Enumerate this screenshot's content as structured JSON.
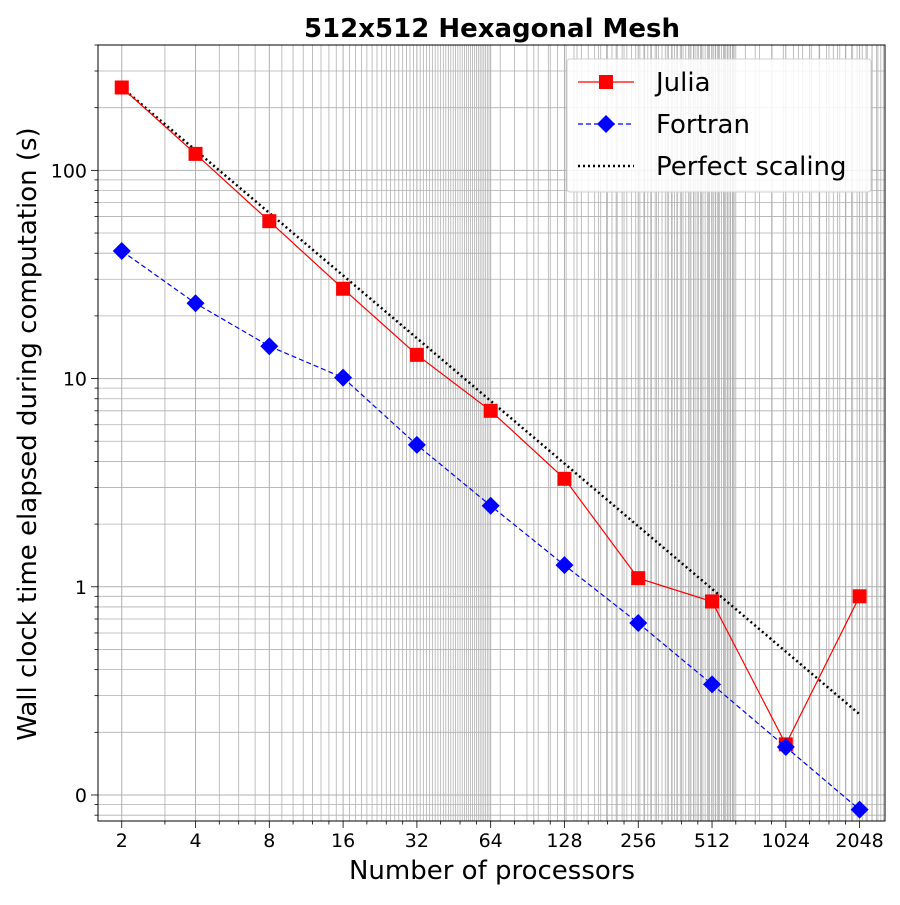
{
  "chart_data": {
    "type": "line",
    "title": "512x512 Hexagonal Mesh",
    "xlabel": "Number of processors",
    "ylabel": "Wall clock time elapsed during computation (s)",
    "x_scale": "log2",
    "y_scale": "log10",
    "x": [
      2,
      4,
      8,
      16,
      32,
      64,
      128,
      256,
      512,
      1024,
      2048
    ],
    "x_tick_labels": [
      "2",
      "4",
      "8",
      "16",
      "32",
      "64",
      "128",
      "256",
      "512",
      "1024",
      "2048"
    ],
    "y_ticks": [
      0.1,
      1,
      10,
      100
    ],
    "y_tick_labels": [
      "0",
      "1",
      "10",
      "100"
    ],
    "xlim": [
      1.6,
      2600
    ],
    "ylim": [
      0.075,
      400
    ],
    "grid": true,
    "legend_position": "top-right",
    "series": [
      {
        "name": "Julia",
        "color": "#ff0000",
        "marker": "square",
        "line_style": "solid",
        "values": [
          250,
          120,
          57,
          27,
          13,
          7.0,
          3.3,
          1.1,
          0.85,
          0.175,
          0.9
        ]
      },
      {
        "name": "Fortran",
        "color": "#0000ff",
        "marker": "diamond",
        "line_style": "dashed",
        "values": [
          41,
          23,
          14.3,
          10.1,
          4.8,
          2.45,
          1.27,
          0.67,
          0.34,
          0.17,
          0.085
        ]
      },
      {
        "name": "Perfect scaling",
        "color": "#000000",
        "marker": "none",
        "line_style": "dotted",
        "values": [
          250,
          125,
          62.5,
          31.25,
          15.625,
          7.8125,
          3.90625,
          1.953125,
          0.9765625,
          0.48828125,
          0.244140625
        ]
      }
    ]
  }
}
